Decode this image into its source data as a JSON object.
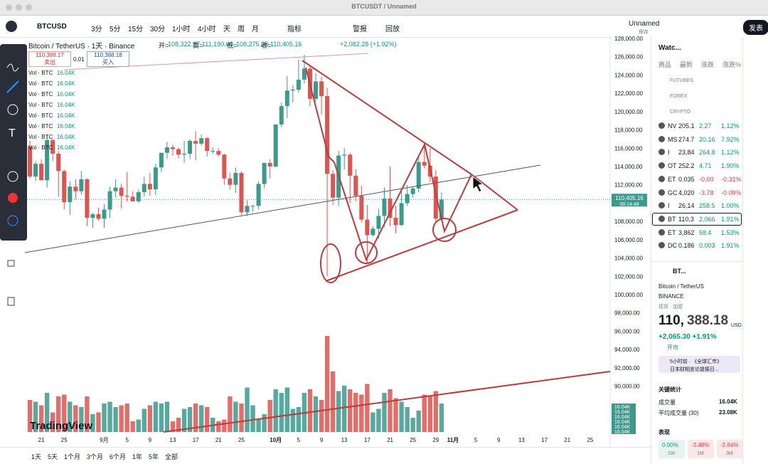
{
  "window_title": "BTCUSDT / Unnamed",
  "toolbar": {
    "symbol": "BTCUSD",
    "intervals": [
      "3分",
      "5分",
      "15分",
      "30分",
      "1小时",
      "4小时",
      "天",
      "周",
      "月"
    ],
    "indicators": "指标",
    "alert": "警报",
    "replay": "回放",
    "layout_name": "Unnamed",
    "layout_status": "保存",
    "publish": "发表"
  },
  "legend": {
    "title": "Bitcoin / TetherUS · 1天 · Binance",
    "ohlc": [
      [
        "开=",
        "108,322.87"
      ],
      [
        "高=",
        "111,190.00"
      ],
      [
        "低=",
        "108,275.28"
      ],
      [
        "收=",
        "110,405.16"
      ]
    ],
    "change": "+2,082.28 (+1.92%)",
    "sell_price": "110,388.17",
    "sell": "卖出",
    "spread": "0.01",
    "buy_price": "110,388.18",
    "buy": "买入",
    "volume_rows": [
      [
        "Vol · BTC",
        "16.04K"
      ],
      [
        "Vol · BTC",
        "16.04K"
      ],
      [
        "Vol · BTC",
        "16.04K"
      ],
      [
        "Vol · BTC",
        "16.04K"
      ],
      [
        "Vol · BTC",
        "16.04K"
      ],
      [
        "Vol · BTC",
        "16.04K"
      ],
      [
        "Vol · BTC",
        "16.04K"
      ],
      [
        "Vol · BTC",
        "16.04K"
      ]
    ]
  },
  "chart_data": {
    "type": "candlestick",
    "up_color": "#3a9a8c",
    "down_color": "#df5450",
    "x": [
      "08-19",
      "08-20",
      "08-21",
      "08-22",
      "08-23",
      "08-24",
      "08-25",
      "08-26",
      "08-27",
      "08-28",
      "08-29",
      "08-30",
      "08-31",
      "09-01",
      "09-02",
      "09-03",
      "09-04",
      "09-05",
      "09-06",
      "09-07",
      "09-08",
      "09-09",
      "09-10",
      "09-11",
      "09-12",
      "09-13",
      "09-14",
      "09-15",
      "09-16",
      "09-17",
      "09-18",
      "09-19",
      "09-20",
      "09-21",
      "09-22",
      "09-23",
      "09-24",
      "09-25",
      "09-26",
      "09-27",
      "09-28",
      "09-29",
      "09-30",
      "10-01",
      "10-02",
      "10-03",
      "10-04",
      "10-05",
      "10-06",
      "10-07",
      "10-08",
      "10-09",
      "10-10",
      "10-11",
      "10-12",
      "10-13",
      "10-14",
      "10-15",
      "10-16",
      "10-17",
      "10-18",
      "10-19",
      "10-20",
      "10-21",
      "10-22",
      "10-23",
      "10-24",
      "10-25",
      "10-26",
      "10-27",
      "10-28",
      "10-29",
      "10-30"
    ],
    "open": [
      116200,
      112900,
      114300,
      112500,
      116900,
      115400,
      113500,
      110100,
      111800,
      111300,
      112600,
      108400,
      108800,
      108300,
      109300,
      111300,
      111700,
      110800,
      110700,
      110200,
      111200,
      112100,
      111500,
      113900,
      115500,
      116100,
      115900,
      115300,
      115400,
      116800,
      116500,
      117100,
      115700,
      115700,
      115300,
      112700,
      112000,
      113300,
      109000,
      109700,
      109700,
      112100,
      114400,
      114000,
      118600,
      120600,
      122300,
      122400,
      123500,
      124700,
      121400,
      123300,
      121700,
      113200,
      110600,
      115200,
      115300,
      113000,
      110800,
      108200,
      106500,
      107200,
      108600,
      110500,
      108400,
      107600,
      110000,
      111000,
      111600,
      114500,
      114100,
      112900,
      108322.87
    ],
    "high": [
      116800,
      114600,
      114800,
      117400,
      117000,
      115700,
      113700,
      112400,
      112600,
      113500,
      112700,
      108900,
      109500,
      109900,
      111800,
      112600,
      112100,
      113400,
      111300,
      111500,
      112900,
      113300,
      114300,
      115500,
      116700,
      116400,
      116100,
      116800,
      117000,
      117900,
      117500,
      117200,
      116100,
      116000,
      115400,
      113300,
      113900,
      113500,
      110300,
      109800,
      112400,
      114400,
      114800,
      118600,
      121000,
      123900,
      122900,
      125700,
      126200,
      125100,
      124200,
      123800,
      122600,
      113600,
      115700,
      116000,
      115500,
      113700,
      111900,
      109800,
      107500,
      109400,
      111700,
      114000,
      109700,
      111300,
      112000,
      111800,
      115000,
      116300,
      116000,
      113600,
      111190
    ],
    "low": [
      112700,
      112400,
      112600,
      111700,
      114600,
      110700,
      109300,
      108700,
      110400,
      110900,
      107500,
      107300,
      108100,
      107300,
      108400,
      110600,
      109400,
      110200,
      110200,
      110000,
      110700,
      110800,
      110900,
      113400,
      114800,
      115200,
      114900,
      114400,
      114800,
      114700,
      116300,
      115100,
      115400,
      115100,
      112000,
      111500,
      111100,
      108700,
      108600,
      109100,
      109300,
      111600,
      112700,
      113900,
      118300,
      119300,
      121000,
      122100,
      123100,
      120600,
      121100,
      119700,
      102000,
      109800,
      109700,
      113700,
      110000,
      110200,
      107900,
      103500,
      106400,
      106100,
      107400,
      107500,
      106700,
      107500,
      109700,
      110600,
      111200,
      113800,
      112300,
      108000,
      108275.28
    ],
    "close": [
      112900,
      114300,
      112500,
      116900,
      115400,
      113500,
      110100,
      111800,
      111300,
      112600,
      108400,
      108800,
      108300,
      109300,
      111300,
      111700,
      110800,
      110700,
      110200,
      111200,
      112100,
      111500,
      113900,
      115500,
      116100,
      115900,
      115300,
      115400,
      116800,
      116500,
      117100,
      115700,
      115700,
      115300,
      112700,
      112000,
      113300,
      109000,
      109700,
      109700,
      112100,
      114400,
      114000,
      118600,
      120600,
      122300,
      122400,
      123500,
      124700,
      121400,
      123300,
      121700,
      113200,
      110600,
      115200,
      115300,
      113000,
      110800,
      108200,
      106500,
      107200,
      108600,
      110500,
      108400,
      107600,
      110000,
      111000,
      111600,
      114500,
      114100,
      112900,
      108300,
      110405.16
    ],
    "volume": [
      18000,
      17000,
      15000,
      22000,
      11000,
      20000,
      21000,
      17000,
      15000,
      14000,
      20000,
      10000,
      11000,
      16000,
      17000,
      14000,
      15000,
      16000,
      6000,
      7000,
      13000,
      15000,
      17000,
      16000,
      17000,
      6000,
      8000,
      13000,
      14000,
      16000,
      15000,
      14000,
      8000,
      6000,
      7000,
      20000,
      17000,
      16000,
      25000,
      15000,
      7000,
      10000,
      18000,
      24000,
      22000,
      25000,
      13000,
      14000,
      22000,
      24000,
      20000,
      18000,
      54000,
      34000,
      23000,
      26000,
      24000,
      22000,
      21000,
      27000,
      11000,
      13000,
      22000,
      24000,
      19000,
      17000,
      14000,
      8000,
      12000,
      21000,
      20000,
      23000,
      16000
    ],
    "volume_ylim": [
      0,
      60000
    ],
    "ylim": [
      84990,
      128700
    ],
    "yticks": [
      {
        "value": 128000,
        "label": "128,000.00"
      },
      {
        "value": 126000,
        "label": "126,000.00"
      },
      {
        "value": 124000,
        "label": "124,000.00"
      },
      {
        "value": 122000,
        "label": "122,000.00"
      },
      {
        "value": 120000,
        "label": "120,000.00"
      },
      {
        "value": 118000,
        "label": "118,000.00"
      },
      {
        "value": 116000,
        "label": "116,000.00"
      },
      {
        "value": 114000,
        "label": "114,000.00"
      },
      {
        "value": 112000,
        "label": "112,000.00"
      },
      {
        "value": 110000,
        "label": "110,000.00"
      },
      {
        "value": 108000,
        "label": "108,000.00"
      },
      {
        "value": 106000,
        "label": "106,000.00"
      },
      {
        "value": 104000,
        "label": "104,000.00"
      },
      {
        "value": 102000,
        "label": "102,000.00"
      },
      {
        "value": 100000,
        "label": "100,000.00"
      },
      {
        "value": 98000,
        "label": "98,000.00"
      },
      {
        "value": 96000,
        "label": "96,000.00"
      },
      {
        "value": 94000,
        "label": "94,000.00"
      },
      {
        "value": 92000,
        "label": "92,000.00"
      },
      {
        "value": 90000,
        "label": "90,000.00"
      }
    ],
    "xticks": [
      {
        "value": "08-21",
        "label": "21"
      },
      {
        "value": "08-25",
        "label": "25"
      },
      {
        "value": "09-01",
        "label": "9月"
      },
      {
        "value": "09-05",
        "label": "5"
      },
      {
        "value": "09-09",
        "label": "9"
      },
      {
        "value": "09-13",
        "label": "13"
      },
      {
        "value": "09-17",
        "label": "17"
      },
      {
        "value": "09-21",
        "label": "21"
      },
      {
        "value": "09-25",
        "label": "25"
      },
      {
        "value": "10-01",
        "label": "10月"
      },
      {
        "value": "10-05",
        "label": "5"
      },
      {
        "value": "10-09",
        "label": "9"
      },
      {
        "value": "10-13",
        "label": "13"
      },
      {
        "value": "10-17",
        "label": "17"
      },
      {
        "value": "10-21",
        "label": "21"
      },
      {
        "value": "10-25",
        "label": "25"
      },
      {
        "value": "10-29",
        "label": "29"
      },
      {
        "value": "11-01",
        "label": "11月"
      },
      {
        "value": "11-05",
        "label": "5"
      },
      {
        "value": "11-09",
        "label": "9"
      },
      {
        "value": "11-13",
        "label": "13"
      },
      {
        "value": "11-17",
        "label": "17"
      },
      {
        "value": "11-21",
        "label": "21"
      },
      {
        "value": "11-25",
        "label": "25"
      }
    ],
    "last_price": {
      "value": 110405.16,
      "label": "110,405.16"
    },
    "countdown": "08:14:48",
    "watermark": "TradingView"
  },
  "watchlist": {
    "title": "Watc...",
    "columns": [
      "商品",
      "最新",
      "涨跌",
      "涨跌%"
    ],
    "sections": [
      "FUTURES",
      "FOREX",
      "CRYPTO"
    ],
    "rows": [
      [
        "NV",
        "205.1",
        "2.27",
        "1.12%"
      ],
      [
        "MS",
        "274.7",
        "20.16",
        "7.92%"
      ],
      [
        "I",
        "23,84",
        "264.8",
        "1.12%"
      ],
      [
        "OT",
        "252.2",
        "4.71",
        "1.90%"
      ],
      [
        "ET",
        "0.035",
        "-0.00",
        "-0.31%"
      ],
      [
        "GC",
        "4,020",
        "-3.78",
        "-0.09%"
      ],
      [
        "I",
        "26,14",
        "258.5",
        "1.00%"
      ],
      [
        "BT",
        "110,3",
        "2,066",
        "1.91%"
      ],
      [
        "ET",
        "3,862",
        "58.4",
        "1.53%"
      ],
      [
        "DC",
        "0.186",
        "0.003",
        "1.91%"
      ]
    ]
  },
  "details": {
    "symbol": "BT...",
    "name": "Bitcoin / TetherUS",
    "exchange": "BINANCE",
    "tags": "现货 · 加密",
    "price_int": "110,",
    "price_dec": "388.18",
    "currency": "USD",
    "change": "+2,065.30 +1.91%",
    "status": "开市",
    "news_time": "5小时前 · 《全球汇市》",
    "news_text": "日本财相言论提振日...",
    "stats_title": "关键统计",
    "stats": [
      [
        "成交量",
        "16.04K"
      ],
      [
        "平均成交量 (30)",
        "23.08K"
      ]
    ],
    "perf_title": "表现",
    "perf": [
      [
        "0.00%",
        "1W"
      ],
      [
        "-3.48%",
        "1M"
      ],
      [
        "-2.84%",
        "3M"
      ]
    ]
  },
  "ranges": [
    "1天",
    "5天",
    "1个月",
    "3个月",
    "6个月",
    "1年",
    "5年",
    "全部"
  ]
}
